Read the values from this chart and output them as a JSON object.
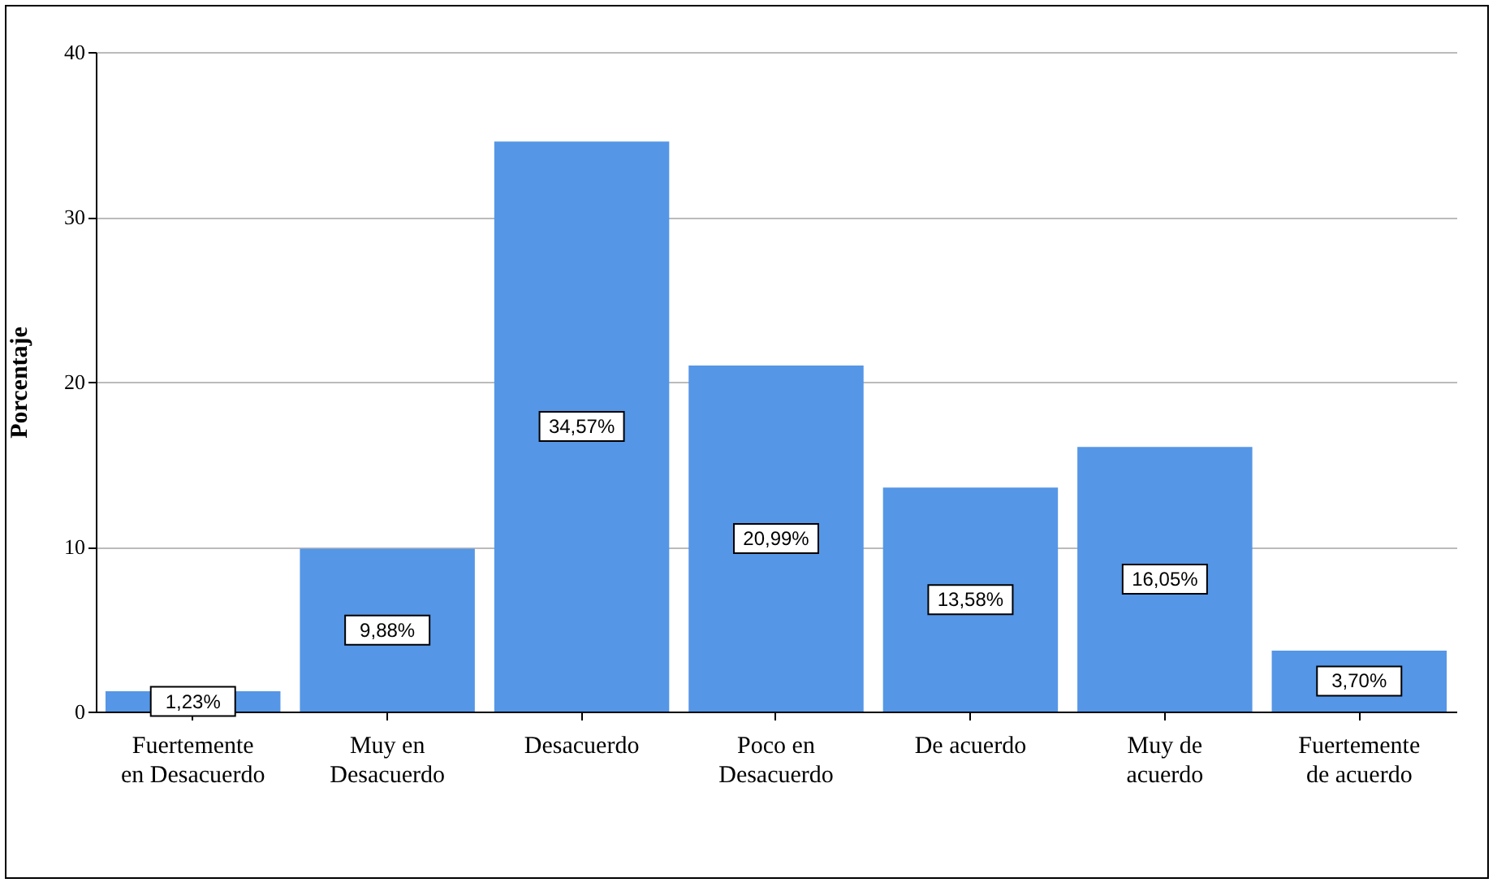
{
  "chart_data": {
    "type": "bar",
    "ylabel": "Porcentaje",
    "categories": [
      "Fuertemente en Desacuerdo",
      "Muy en Desacuerdo",
      "Desacuerdo",
      "Poco en Desacuerdo",
      "De acuerdo",
      "Muy de acuerdo",
      "Fuertemente de acuerdo"
    ],
    "values": [
      1.23,
      9.88,
      34.57,
      20.99,
      13.58,
      16.05,
      3.7
    ],
    "value_labels": [
      "1,23%",
      "9,88%",
      "34,57%",
      "20,99%",
      "13,58%",
      "16,05%",
      "3,70%"
    ],
    "color": "#5596e6",
    "ylim": [
      0,
      40
    ],
    "yticks": [
      0,
      10,
      20,
      30,
      40
    ],
    "grid": "y"
  }
}
